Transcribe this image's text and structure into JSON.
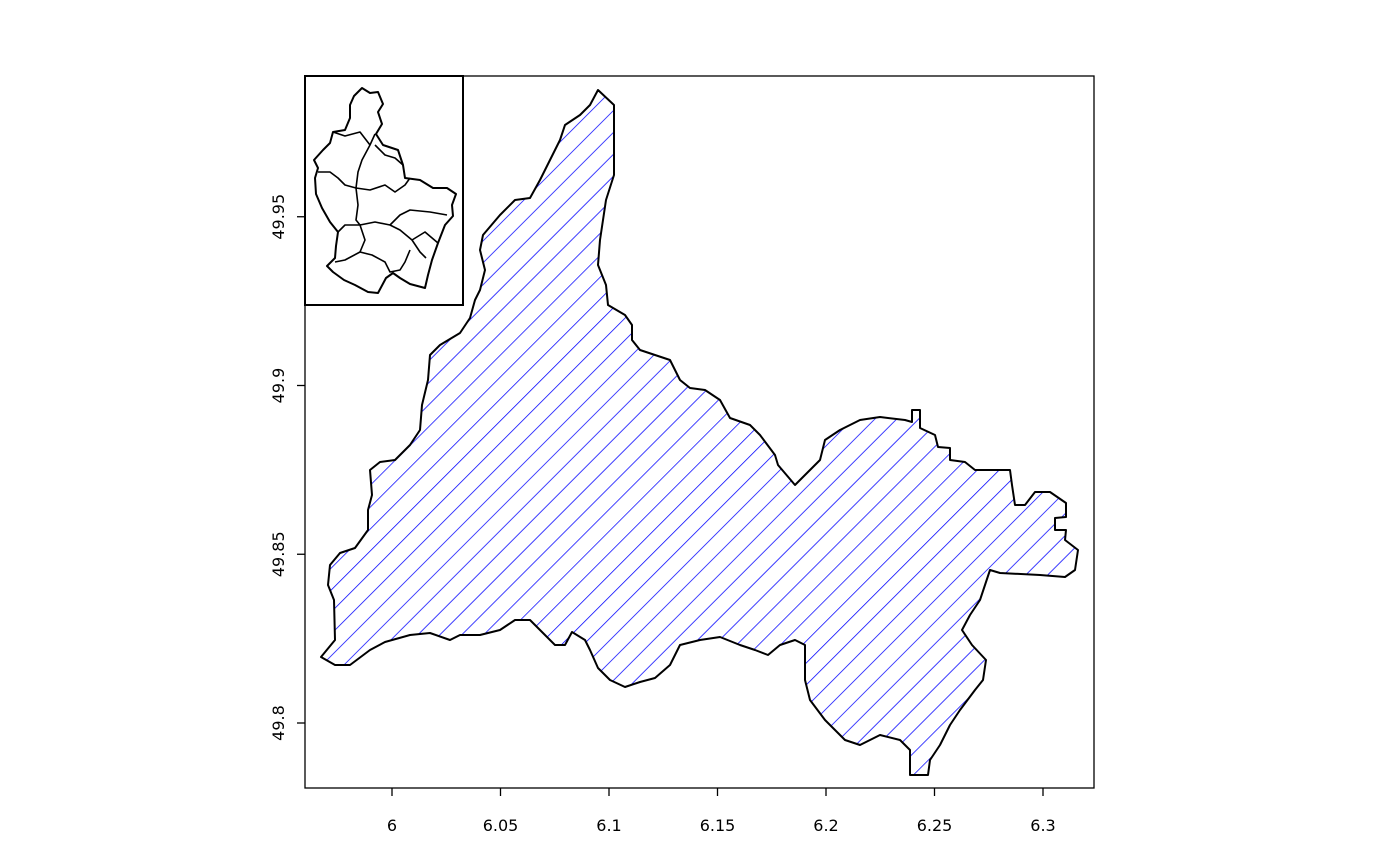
{
  "chart_data": {
    "type": "map",
    "title": "",
    "xlabel": "",
    "ylabel": "",
    "xlim": [
      5.96,
      6.322
    ],
    "ylim": [
      49.781,
      49.993
    ],
    "x_ticks": [
      {
        "value": 6,
        "label": "6"
      },
      {
        "value": 6.05,
        "label": "6.05"
      },
      {
        "value": 6.1,
        "label": "6.1"
      },
      {
        "value": 6.15,
        "label": "6.15"
      },
      {
        "value": 6.2,
        "label": "6.2"
      },
      {
        "value": 6.25,
        "label": "6.25"
      },
      {
        "value": 6.3,
        "label": "6.3"
      }
    ],
    "y_ticks": [
      {
        "value": 49.8,
        "label": "49.8"
      },
      {
        "value": 49.85,
        "label": "49.85"
      },
      {
        "value": 49.9,
        "label": "49.9"
      },
      {
        "value": 49.95,
        "label": "49.95"
      }
    ],
    "fill": "diagonal hatching",
    "hatch_color": "#0000ff",
    "outline_color": "#000000",
    "inset": "overview map of all cantons, top-left"
  }
}
